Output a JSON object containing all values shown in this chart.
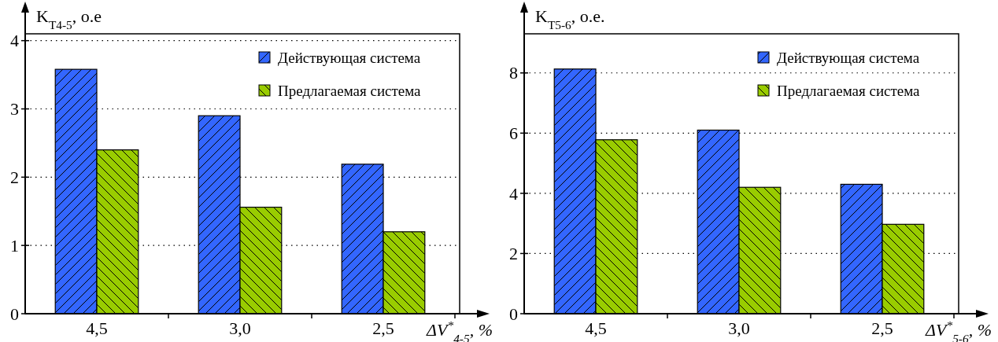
{
  "chart_data": [
    {
      "type": "bar",
      "ylabel": "K$_{T4-5}$, о.е",
      "xlabel": "ΔV$^{*}$$_{4-5}$, %",
      "categories": [
        "4,5",
        "3,0",
        "2,5"
      ],
      "series": [
        {
          "name": "Действующая система",
          "color": "#3366ff",
          "values": [
            3.58,
            2.9,
            2.19
          ]
        },
        {
          "name": "Предлагаемая система",
          "color": "#99cc00",
          "values": [
            2.4,
            1.56,
            1.2
          ]
        }
      ],
      "ylim": [
        0,
        4.1
      ],
      "yticks": [
        0,
        1,
        2,
        3,
        4
      ],
      "grid": "y",
      "legend": "top right"
    },
    {
      "type": "bar",
      "ylabel": "K$_{T5-6}$, о.е.",
      "xlabel": "ΔV$^{*}$$_{5-6}$, %",
      "categories": [
        "4,5",
        "3,0",
        "2,5"
      ],
      "series": [
        {
          "name": "Действующая система",
          "color": "#3366ff",
          "values": [
            8.13,
            6.1,
            4.3
          ]
        },
        {
          "name": "Предлагаемая система",
          "color": "#99cc00",
          "values": [
            5.78,
            4.2,
            2.97
          ]
        }
      ],
      "ylim": [
        0,
        9.3
      ],
      "yticks": [
        0,
        2,
        4,
        6,
        8
      ],
      "grid": "y",
      "legend": "top right"
    }
  ]
}
